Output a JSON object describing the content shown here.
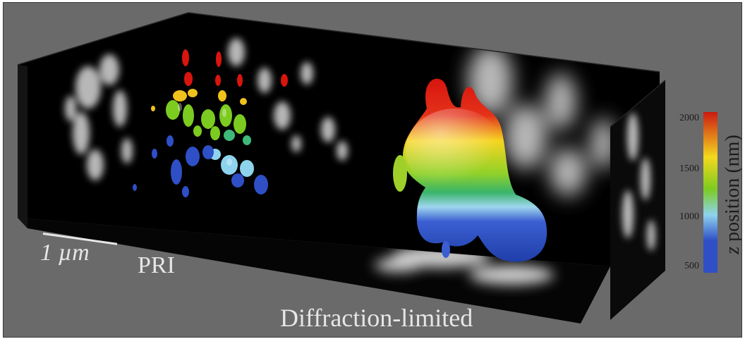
{
  "figure": {
    "left_panel_label": "PRI",
    "right_panel_label": "Diffraction-limited",
    "scale_bar_label": "1 µm"
  },
  "colorbar": {
    "title_prefix": "z",
    "title_suffix": "position (nm)",
    "ticks": [
      "2000",
      "1500",
      "1000",
      "500"
    ],
    "colors": [
      "#cc1a12",
      "#f4d81e",
      "#7ccb20",
      "#8ed3ee",
      "#2e4fc6"
    ]
  },
  "colors": {
    "background": "#6a6a6a",
    "box_face": "#000000"
  }
}
